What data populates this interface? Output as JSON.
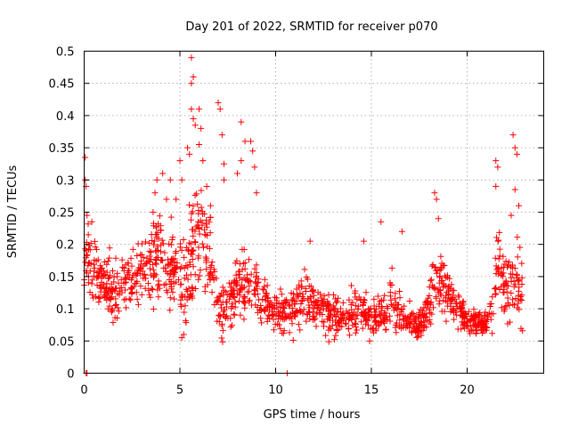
{
  "chart_data": {
    "type": "scatter",
    "title": "Day 201 of 2022, SRMTID for receiver p070",
    "xlabel": "GPS time / hours",
    "ylabel": "SRMTID / TECUs",
    "xlim": [
      0,
      24
    ],
    "ylim": [
      0,
      0.5
    ],
    "x_ticks": [
      0,
      5,
      10,
      15,
      20
    ],
    "x_tick_labels": [
      "0",
      "5",
      "10",
      "15",
      "20"
    ],
    "y_ticks": [
      0,
      0.05,
      0.1,
      0.15,
      0.2,
      0.25,
      0.3,
      0.35,
      0.4,
      0.45,
      0.5
    ],
    "y_tick_labels": [
      "0",
      "0.05",
      "0.1",
      "0.15",
      "0.2",
      "0.25",
      "0.3",
      "0.35",
      "0.4",
      "0.45",
      "0.5"
    ],
    "grid": true,
    "marker": "+",
    "series": [
      {
        "name": "SRMTID",
        "color": "#ff0000",
        "profile": {
          "hours": [
            0.0,
            0.1,
            0.3,
            0.6,
            1.0,
            1.5,
            2.0,
            2.5,
            3.0,
            3.5,
            4.0,
            4.5,
            5.0,
            5.3,
            5.6,
            5.9,
            6.2,
            6.6,
            7.0,
            7.3,
            7.6,
            8.0,
            8.3,
            8.6,
            9.0,
            9.3,
            9.6,
            10.0,
            10.5,
            11.0,
            11.5,
            12.0,
            12.5,
            13.0,
            13.5,
            14.0,
            14.5,
            15.0,
            15.5,
            16.0,
            16.5,
            17.0,
            17.5,
            18.0,
            18.3,
            18.6,
            19.0,
            19.5,
            20.0,
            20.5,
            21.0,
            21.3,
            21.6,
            21.9,
            22.2,
            22.5,
            22.9
          ],
          "center": [
            0.17,
            0.2,
            0.16,
            0.15,
            0.14,
            0.13,
            0.14,
            0.15,
            0.16,
            0.17,
            0.19,
            0.17,
            0.16,
            0.15,
            0.18,
            0.22,
            0.21,
            0.18,
            0.09,
            0.1,
            0.11,
            0.13,
            0.14,
            0.13,
            0.14,
            0.11,
            0.1,
            0.1,
            0.09,
            0.1,
            0.12,
            0.11,
            0.1,
            0.09,
            0.09,
            0.09,
            0.1,
            0.08,
            0.09,
            0.11,
            0.09,
            0.08,
            0.07,
            0.1,
            0.15,
            0.14,
            0.12,
            0.1,
            0.08,
            0.08,
            0.08,
            0.1,
            0.18,
            0.14,
            0.12,
            0.15,
            0.13
          ],
          "spread": [
            0.05,
            0.05,
            0.05,
            0.04,
            0.04,
            0.04,
            0.04,
            0.04,
            0.05,
            0.05,
            0.06,
            0.06,
            0.06,
            0.06,
            0.08,
            0.09,
            0.08,
            0.06,
            0.03,
            0.04,
            0.04,
            0.05,
            0.05,
            0.05,
            0.05,
            0.04,
            0.03,
            0.03,
            0.03,
            0.03,
            0.04,
            0.03,
            0.03,
            0.03,
            0.03,
            0.03,
            0.03,
            0.03,
            0.03,
            0.04,
            0.03,
            0.02,
            0.02,
            0.03,
            0.05,
            0.05,
            0.04,
            0.03,
            0.02,
            0.02,
            0.02,
            0.03,
            0.06,
            0.05,
            0.05,
            0.06,
            0.05
          ]
        },
        "peaks": [
          {
            "x": 0.05,
            "y": 0.335
          },
          {
            "x": 0.05,
            "y": 0.3
          },
          {
            "x": 0.1,
            "y": 0.29
          },
          {
            "x": 0.15,
            "y": 0.245
          },
          {
            "x": 0.1,
            "y": 0.0
          },
          {
            "x": 0.15,
            "y": 0.0
          },
          {
            "x": 0.4,
            "y": 0.235
          },
          {
            "x": 3.6,
            "y": 0.25
          },
          {
            "x": 3.7,
            "y": 0.28
          },
          {
            "x": 3.8,
            "y": 0.3
          },
          {
            "x": 4.1,
            "y": 0.31
          },
          {
            "x": 4.3,
            "y": 0.27
          },
          {
            "x": 4.5,
            "y": 0.3
          },
          {
            "x": 4.8,
            "y": 0.27
          },
          {
            "x": 5.0,
            "y": 0.33
          },
          {
            "x": 5.1,
            "y": 0.3
          },
          {
            "x": 5.1,
            "y": 0.055
          },
          {
            "x": 5.2,
            "y": 0.06
          },
          {
            "x": 5.4,
            "y": 0.35
          },
          {
            "x": 5.5,
            "y": 0.34
          },
          {
            "x": 5.6,
            "y": 0.49
          },
          {
            "x": 5.6,
            "y": 0.45
          },
          {
            "x": 5.7,
            "y": 0.46
          },
          {
            "x": 5.6,
            "y": 0.41
          },
          {
            "x": 5.7,
            "y": 0.395
          },
          {
            "x": 5.8,
            "y": 0.385
          },
          {
            "x": 6.0,
            "y": 0.41
          },
          {
            "x": 6.1,
            "y": 0.38
          },
          {
            "x": 6.0,
            "y": 0.355
          },
          {
            "x": 6.2,
            "y": 0.33
          },
          {
            "x": 6.4,
            "y": 0.29
          },
          {
            "x": 6.6,
            "y": 0.26
          },
          {
            "x": 7.0,
            "y": 0.42
          },
          {
            "x": 7.1,
            "y": 0.41
          },
          {
            "x": 7.2,
            "y": 0.37
          },
          {
            "x": 7.3,
            "y": 0.325
          },
          {
            "x": 7.3,
            "y": 0.3
          },
          {
            "x": 8.2,
            "y": 0.39
          },
          {
            "x": 8.4,
            "y": 0.36
          },
          {
            "x": 8.2,
            "y": 0.33
          },
          {
            "x": 8.0,
            "y": 0.31
          },
          {
            "x": 8.7,
            "y": 0.36
          },
          {
            "x": 8.8,
            "y": 0.345
          },
          {
            "x": 8.9,
            "y": 0.32
          },
          {
            "x": 9.0,
            "y": 0.28
          },
          {
            "x": 10.6,
            "y": 0.0
          },
          {
            "x": 11.8,
            "y": 0.205
          },
          {
            "x": 14.6,
            "y": 0.205
          },
          {
            "x": 15.5,
            "y": 0.235
          },
          {
            "x": 16.6,
            "y": 0.22
          },
          {
            "x": 18.3,
            "y": 0.28
          },
          {
            "x": 18.4,
            "y": 0.27
          },
          {
            "x": 18.5,
            "y": 0.24
          },
          {
            "x": 21.5,
            "y": 0.33
          },
          {
            "x": 21.6,
            "y": 0.32
          },
          {
            "x": 21.5,
            "y": 0.29
          },
          {
            "x": 22.4,
            "y": 0.37
          },
          {
            "x": 22.5,
            "y": 0.35
          },
          {
            "x": 22.6,
            "y": 0.34
          },
          {
            "x": 22.5,
            "y": 0.285
          },
          {
            "x": 22.7,
            "y": 0.26
          },
          {
            "x": 22.3,
            "y": 0.245
          }
        ]
      }
    ]
  }
}
